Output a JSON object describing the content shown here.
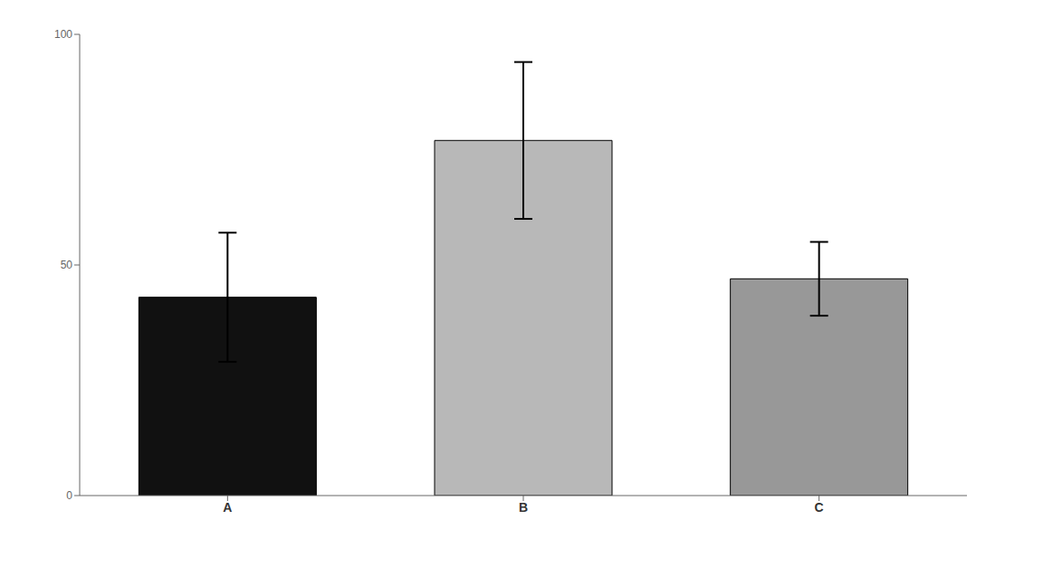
{
  "chart_data": {
    "type": "bar",
    "categories": [
      "A",
      "B",
      "C"
    ],
    "values": [
      43,
      77,
      47
    ],
    "errors": [
      14,
      17,
      8
    ],
    "colors": [
      "#111111",
      "#b8b8b8",
      "#989898"
    ],
    "ylim": [
      0,
      100
    ],
    "yticks": [
      0,
      50,
      100
    ],
    "grid": false
  }
}
